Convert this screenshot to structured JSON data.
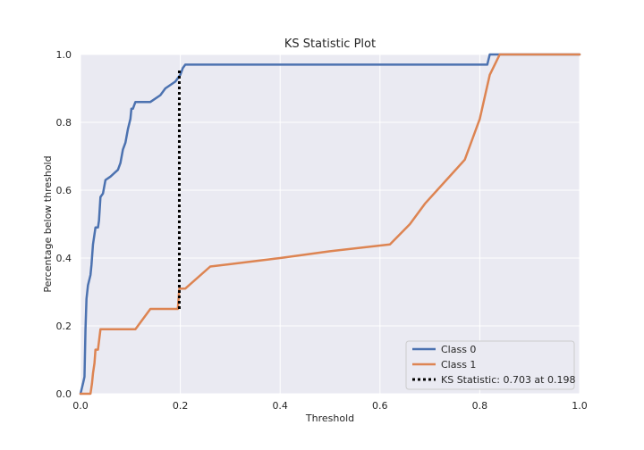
{
  "chart_data": {
    "type": "line",
    "title": "KS Statistic Plot",
    "xlabel": "Threshold",
    "ylabel": "Percentage below threshold",
    "xlim": [
      0,
      1
    ],
    "ylim": [
      0,
      1
    ],
    "xticks": [
      0.0,
      0.2,
      0.4,
      0.6,
      0.8,
      1.0
    ],
    "yticks": [
      0.0,
      0.2,
      0.4,
      0.6,
      0.8,
      1.0
    ],
    "xtick_labels": [
      "0.0",
      "0.2",
      "0.4",
      "0.6",
      "0.8",
      "1.0"
    ],
    "ytick_labels": [
      "0.0",
      "0.2",
      "0.4",
      "0.6",
      "0.8",
      "1.0"
    ],
    "grid": true,
    "legend_position": "lower-right",
    "background_color": "#eaeaf2",
    "series": [
      {
        "name": "Class 0",
        "color": "#4c72b0",
        "style": "solid",
        "x": [
          0.0,
          0.005,
          0.008,
          0.01,
          0.012,
          0.015,
          0.02,
          0.022,
          0.025,
          0.03,
          0.035,
          0.037,
          0.04,
          0.045,
          0.05,
          0.06,
          0.075,
          0.08,
          0.085,
          0.09,
          0.095,
          0.1,
          0.102,
          0.105,
          0.11,
          0.14,
          0.16,
          0.17,
          0.19,
          0.2,
          0.205,
          0.21,
          0.3,
          0.5,
          0.7,
          0.815,
          0.82,
          0.84,
          1.0
        ],
        "y": [
          0.0,
          0.03,
          0.05,
          0.19,
          0.28,
          0.32,
          0.35,
          0.38,
          0.44,
          0.49,
          0.49,
          0.51,
          0.58,
          0.59,
          0.63,
          0.64,
          0.66,
          0.68,
          0.72,
          0.74,
          0.78,
          0.81,
          0.84,
          0.84,
          0.86,
          0.86,
          0.88,
          0.9,
          0.92,
          0.94,
          0.96,
          0.97,
          0.97,
          0.97,
          0.97,
          0.97,
          1.0,
          1.0,
          1.0
        ]
      },
      {
        "name": "Class 1",
        "color": "#dd8452",
        "style": "solid",
        "x": [
          0.0,
          0.02,
          0.023,
          0.025,
          0.028,
          0.03,
          0.035,
          0.04,
          0.042,
          0.11,
          0.14,
          0.195,
          0.198,
          0.2,
          0.21,
          0.26,
          0.4,
          0.5,
          0.62,
          0.66,
          0.69,
          0.73,
          0.77,
          0.785,
          0.8,
          0.81,
          0.82,
          0.83,
          0.84,
          0.85,
          1.0
        ],
        "y": [
          0.0,
          0.0,
          0.03,
          0.06,
          0.09,
          0.13,
          0.13,
          0.19,
          0.19,
          0.19,
          0.25,
          0.25,
          0.31,
          0.31,
          0.31,
          0.375,
          0.4,
          0.42,
          0.44,
          0.5,
          0.56,
          0.625,
          0.69,
          0.75,
          0.81,
          0.875,
          0.94,
          0.97,
          1.0,
          1.0,
          1.0
        ]
      },
      {
        "name": "KS Statistic: 0.703 at 0.198",
        "color": "#000000",
        "style": "dotted",
        "x": [
          0.198,
          0.198
        ],
        "y": [
          0.25,
          0.953
        ]
      }
    ]
  }
}
